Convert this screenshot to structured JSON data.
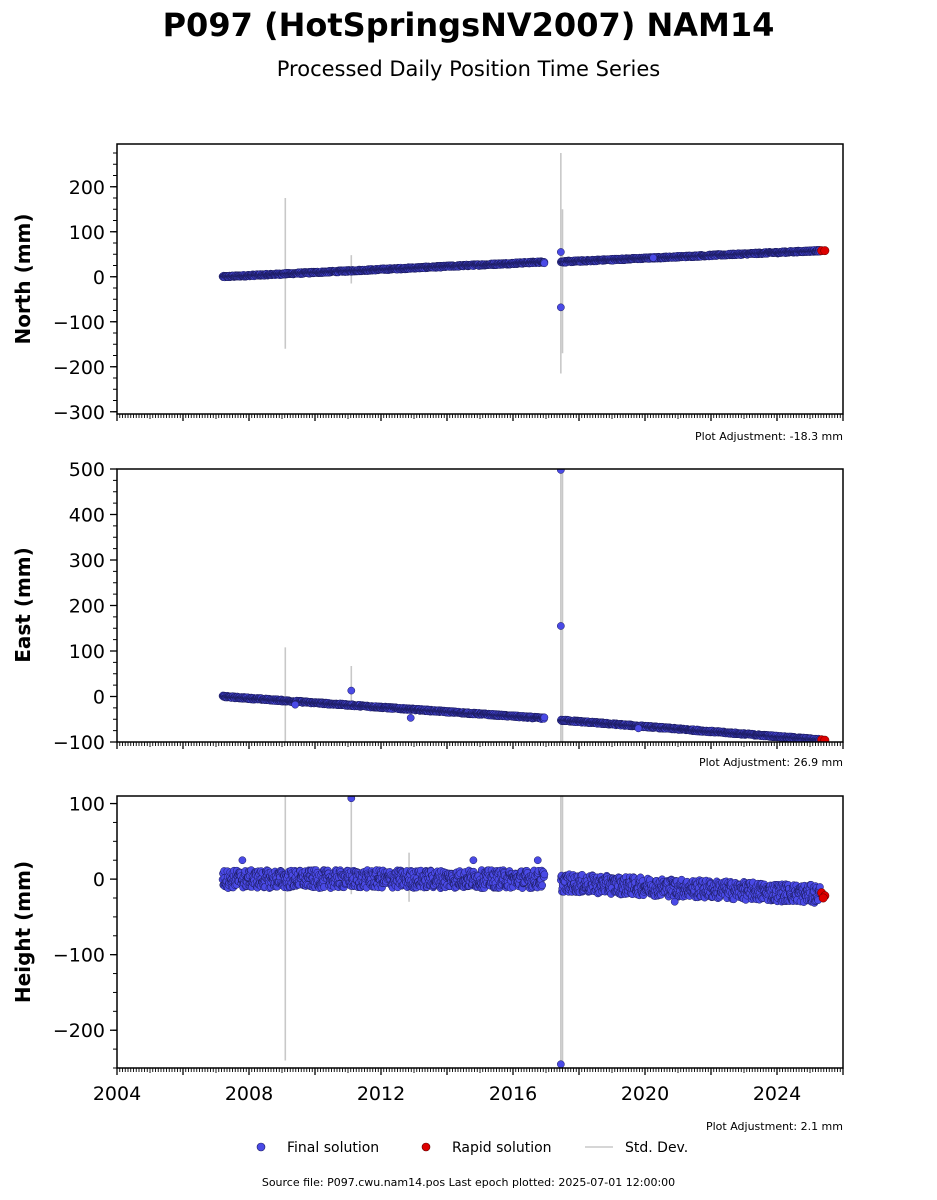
{
  "header": {
    "title": "P097 (HotSpringsNV2007) NAM14",
    "subtitle": "Processed Daily Position Time Series"
  },
  "legend": {
    "final": "Final solution",
    "rapid": "Rapid solution",
    "stddev": "Std. Dev."
  },
  "footer": {
    "source": "Source file: P097.cwu.nam14.pos  Last epoch plotted: 2025-07-01 12:00:00"
  },
  "colors": {
    "final": "#4a4ae6",
    "final_edge": "#1a1a5a",
    "rapid": "#dd0000",
    "stddev": "#c8c8c8"
  },
  "chart_data": [
    {
      "type": "scatter",
      "ylabel": "North (mm)",
      "adjustment": "Plot Adjustment: -18.3 mm",
      "xlim": [
        2004,
        2026
      ],
      "ylim": [
        -305,
        295
      ],
      "yticks": [
        -300,
        -200,
        -100,
        0,
        100,
        200
      ],
      "xticks": [],
      "series": [
        {
          "name": "Final solution",
          "segments": [
            [
              2007.2,
              0
            ],
            [
              2016.95,
              33
            ],
            [
              2017.45,
              33
            ],
            [
              2025.3,
              58
            ]
          ]
        },
        {
          "name": "Rapid solution",
          "points": [
            [
              2025.35,
              58
            ],
            [
              2025.45,
              58
            ]
          ]
        }
      ],
      "outliers": [
        [
          2017.45,
          55
        ],
        [
          2017.45,
          -68
        ],
        [
          2020.25,
          42
        ],
        [
          2016.95,
          30
        ]
      ],
      "stddev_bars": [
        [
          2009.1,
          -160,
          175
        ],
        [
          2011.1,
          -15,
          48
        ],
        [
          2017.45,
          -215,
          275
        ],
        [
          2017.5,
          -170,
          150
        ]
      ]
    },
    {
      "type": "scatter",
      "ylabel": "East (mm)",
      "adjustment": "Plot Adjustment: 26.9 mm",
      "xlim": [
        2004,
        2026
      ],
      "ylim": [
        -100,
        500
      ],
      "yticks": [
        -100,
        0,
        100,
        200,
        300,
        400,
        500
      ],
      "xticks": [],
      "series": [
        {
          "name": "Final solution",
          "segments": [
            [
              2007.2,
              0
            ],
            [
              2016.95,
              -48
            ],
            [
              2017.45,
              -52
            ],
            [
              2025.3,
              -95
            ]
          ]
        },
        {
          "name": "Rapid solution",
          "points": [
            [
              2025.35,
              -95
            ],
            [
              2025.45,
              -96
            ]
          ]
        }
      ],
      "outliers": [
        [
          2017.45,
          155
        ],
        [
          2017.45,
          498
        ],
        [
          2011.1,
          13
        ],
        [
          2009.4,
          -18
        ],
        [
          2012.9,
          -47
        ],
        [
          2019.8,
          -70
        ]
      ],
      "stddev_bars": [
        [
          2009.1,
          -100,
          108
        ],
        [
          2011.1,
          -20,
          67
        ],
        [
          2017.45,
          -100,
          500
        ],
        [
          2017.5,
          -100,
          500
        ]
      ]
    },
    {
      "type": "scatter",
      "ylabel": "Height (mm)",
      "adjustment": "Plot Adjustment: 2.1 mm",
      "xlim": [
        2004,
        2026
      ],
      "ylim": [
        -250,
        110
      ],
      "yticks": [
        -200,
        -100,
        0,
        100
      ],
      "xticks": [
        "2004",
        "2008",
        "2012",
        "2016",
        "2020",
        "2024"
      ],
      "series": [
        {
          "name": "Final solution",
          "segments": [
            [
              2007.2,
              0
            ],
            [
              2016.95,
              0
            ],
            [
              2017.45,
              -5
            ],
            [
              2025.3,
              -20
            ]
          ]
        },
        {
          "name": "Rapid solution",
          "points": [
            [
              2025.35,
              -18
            ],
            [
              2025.45,
              -22
            ],
            [
              2025.4,
              -25
            ]
          ]
        }
      ],
      "outliers": [
        [
          2011.1,
          107
        ],
        [
          2017.45,
          -245
        ],
        [
          2020.9,
          -30
        ],
        [
          2014.8,
          25
        ],
        [
          2016.75,
          25
        ],
        [
          2007.8,
          25
        ]
      ],
      "stddev_bars": [
        [
          2009.1,
          -240,
          110
        ],
        [
          2011.1,
          -20,
          110
        ],
        [
          2012.85,
          -30,
          35
        ],
        [
          2017.45,
          -250,
          110
        ],
        [
          2017.5,
          -250,
          110
        ]
      ]
    }
  ]
}
